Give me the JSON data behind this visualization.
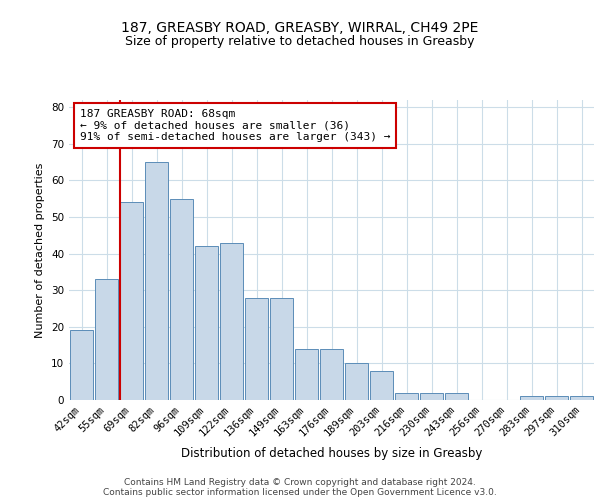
{
  "title1": "187, GREASBY ROAD, GREASBY, WIRRAL, CH49 2PE",
  "title2": "Size of property relative to detached houses in Greasby",
  "xlabel": "Distribution of detached houses by size in Greasby",
  "ylabel": "Number of detached properties",
  "categories": [
    "42sqm",
    "55sqm",
    "69sqm",
    "82sqm",
    "96sqm",
    "109sqm",
    "122sqm",
    "136sqm",
    "149sqm",
    "163sqm",
    "176sqm",
    "189sqm",
    "203sqm",
    "216sqm",
    "230sqm",
    "243sqm",
    "256sqm",
    "270sqm",
    "283sqm",
    "297sqm",
    "310sqm"
  ],
  "values": [
    19,
    33,
    54,
    65,
    55,
    42,
    43,
    28,
    28,
    14,
    14,
    10,
    8,
    2,
    2,
    2,
    0,
    0,
    1,
    1,
    1
  ],
  "bar_color": "#c8d8e8",
  "bar_edge_color": "#5b8db8",
  "highlight_line_color": "#cc0000",
  "ylim": [
    0,
    82
  ],
  "yticks": [
    0,
    10,
    20,
    30,
    40,
    50,
    60,
    70,
    80
  ],
  "annotation_text": "187 GREASBY ROAD: 68sqm\n← 9% of detached houses are smaller (36)\n91% of semi-detached houses are larger (343) →",
  "annotation_box_color": "#cc0000",
  "footer_text": "Contains HM Land Registry data © Crown copyright and database right 2024.\nContains public sector information licensed under the Open Government Licence v3.0.",
  "background_color": "#ffffff",
  "grid_color": "#ccdde8",
  "title1_fontsize": 10,
  "title2_fontsize": 9,
  "xlabel_fontsize": 8.5,
  "ylabel_fontsize": 8,
  "tick_fontsize": 7.5,
  "annotation_fontsize": 8,
  "footer_fontsize": 6.5
}
